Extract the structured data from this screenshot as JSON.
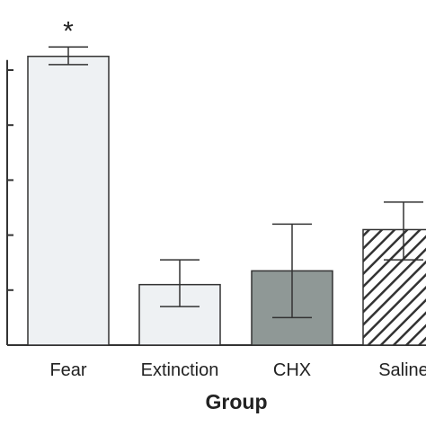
{
  "chart_data": {
    "type": "bar",
    "title": "",
    "xlabel": "Group",
    "ylabel": "",
    "categories": [
      "Fear",
      "Extinction",
      "CHX",
      "Saline"
    ],
    "values": [
      5.25,
      1.1,
      1.35,
      2.1
    ],
    "errors": [
      [
        5.1,
        5.42
      ],
      [
        0.7,
        1.55
      ],
      [
        0.5,
        2.2
      ],
      [
        1.55,
        2.6
      ]
    ],
    "ylim": [
      0,
      6
    ],
    "y_ticks": [
      0,
      1,
      2,
      3,
      4,
      5
    ],
    "show_y_tick_labels": false,
    "significance": [
      "*",
      "",
      "",
      ""
    ],
    "fills": [
      "#eef1f3",
      "#eef1f3",
      "#8f9896",
      "hatch"
    ],
    "colors": {
      "edge": "#333333",
      "hatch": "#333333"
    },
    "grid": false
  }
}
